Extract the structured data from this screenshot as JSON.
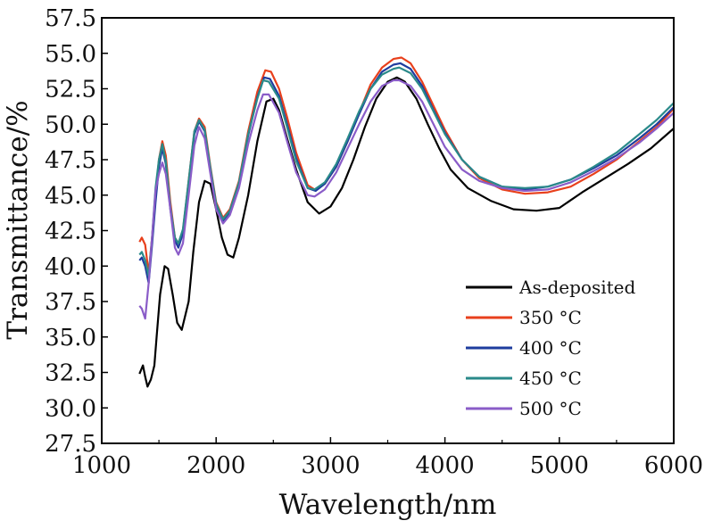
{
  "chart_data": {
    "type": "line",
    "xlabel": "Wavelength/nm",
    "ylabel": "Transmittance/%",
    "xlim": [
      1000,
      6000
    ],
    "ylim": [
      27.5,
      57.5
    ],
    "x_ticks": [
      1000,
      2000,
      3000,
      4000,
      5000,
      6000
    ],
    "x_tick_labels": [
      "1000",
      "2000",
      "3000",
      "4000",
      "5000",
      "6000"
    ],
    "y_ticks": [
      27.5,
      30.0,
      32.5,
      35.0,
      37.5,
      40.0,
      42.5,
      45.0,
      47.5,
      50.0,
      52.5,
      55.0,
      57.5
    ],
    "y_tick_labels": [
      "27.5",
      "30.0",
      "32.5",
      "35.0",
      "37.5",
      "40.0",
      "42.5",
      "45.0",
      "47.5",
      "50.0",
      "52.5",
      "55.0",
      "57.5"
    ],
    "grid": false,
    "legend_position": "bottom-right",
    "series": [
      {
        "name": "As-deposited",
        "color": "#000000",
        "points": [
          [
            1330,
            32.4
          ],
          [
            1360,
            33.0
          ],
          [
            1380,
            32.2
          ],
          [
            1400,
            31.5
          ],
          [
            1430,
            32.0
          ],
          [
            1460,
            33.0
          ],
          [
            1480,
            35.0
          ],
          [
            1510,
            38.0
          ],
          [
            1550,
            40.0
          ],
          [
            1580,
            39.8
          ],
          [
            1620,
            38.0
          ],
          [
            1660,
            36.0
          ],
          [
            1700,
            35.5
          ],
          [
            1760,
            37.5
          ],
          [
            1800,
            41.0
          ],
          [
            1850,
            44.5
          ],
          [
            1900,
            46.0
          ],
          [
            1950,
            45.8
          ],
          [
            2000,
            44.0
          ],
          [
            2050,
            42.0
          ],
          [
            2100,
            40.8
          ],
          [
            2150,
            40.6
          ],
          [
            2200,
            42.0
          ],
          [
            2280,
            45.0
          ],
          [
            2360,
            48.8
          ],
          [
            2440,
            51.6
          ],
          [
            2500,
            51.8
          ],
          [
            2550,
            51.0
          ],
          [
            2620,
            49.0
          ],
          [
            2700,
            46.8
          ],
          [
            2800,
            44.5
          ],
          [
            2900,
            43.7
          ],
          [
            3000,
            44.2
          ],
          [
            3100,
            45.5
          ],
          [
            3200,
            47.5
          ],
          [
            3300,
            49.8
          ],
          [
            3400,
            51.8
          ],
          [
            3500,
            53.0
          ],
          [
            3580,
            53.3
          ],
          [
            3650,
            53.0
          ],
          [
            3750,
            51.8
          ],
          [
            3850,
            50.0
          ],
          [
            3950,
            48.3
          ],
          [
            4050,
            46.8
          ],
          [
            4200,
            45.5
          ],
          [
            4400,
            44.6
          ],
          [
            4600,
            44.0
          ],
          [
            4800,
            43.9
          ],
          [
            5000,
            44.1
          ],
          [
            5200,
            45.2
          ],
          [
            5400,
            46.2
          ],
          [
            5600,
            47.2
          ],
          [
            5800,
            48.3
          ],
          [
            6000,
            49.7
          ]
        ]
      },
      {
        "name": "350 °C",
        "color": "#e8401c",
        "points": [
          [
            1330,
            41.7
          ],
          [
            1350,
            42.0
          ],
          [
            1380,
            41.5
          ],
          [
            1410,
            39.5
          ],
          [
            1440,
            42.0
          ],
          [
            1470,
            45.0
          ],
          [
            1500,
            47.5
          ],
          [
            1530,
            48.8
          ],
          [
            1560,
            47.8
          ],
          [
            1600,
            44.5
          ],
          [
            1640,
            42.0
          ],
          [
            1670,
            41.6
          ],
          [
            1710,
            42.5
          ],
          [
            1760,
            46.0
          ],
          [
            1810,
            49.5
          ],
          [
            1850,
            50.4
          ],
          [
            1900,
            49.8
          ],
          [
            1950,
            47.0
          ],
          [
            2000,
            44.5
          ],
          [
            2060,
            43.4
          ],
          [
            2120,
            44.0
          ],
          [
            2200,
            46.0
          ],
          [
            2280,
            49.5
          ],
          [
            2360,
            52.3
          ],
          [
            2430,
            53.8
          ],
          [
            2480,
            53.7
          ],
          [
            2550,
            52.5
          ],
          [
            2620,
            50.5
          ],
          [
            2700,
            48.0
          ],
          [
            2800,
            45.7
          ],
          [
            2860,
            45.4
          ],
          [
            2950,
            45.8
          ],
          [
            3050,
            47.0
          ],
          [
            3150,
            48.8
          ],
          [
            3250,
            50.8
          ],
          [
            3350,
            52.8
          ],
          [
            3450,
            54.0
          ],
          [
            3550,
            54.6
          ],
          [
            3620,
            54.7
          ],
          [
            3700,
            54.3
          ],
          [
            3800,
            53.0
          ],
          [
            3900,
            51.3
          ],
          [
            4000,
            49.6
          ],
          [
            4150,
            47.5
          ],
          [
            4300,
            46.2
          ],
          [
            4500,
            45.4
          ],
          [
            4700,
            45.1
          ],
          [
            4900,
            45.2
          ],
          [
            5100,
            45.6
          ],
          [
            5300,
            46.5
          ],
          [
            5500,
            47.5
          ],
          [
            5700,
            48.8
          ],
          [
            5850,
            49.8
          ],
          [
            6000,
            51.1
          ]
        ]
      },
      {
        "name": "400 °C",
        "color": "#1f3c9e",
        "points": [
          [
            1330,
            40.4
          ],
          [
            1350,
            40.6
          ],
          [
            1380,
            40.0
          ],
          [
            1410,
            38.8
          ],
          [
            1440,
            41.5
          ],
          [
            1470,
            44.5
          ],
          [
            1500,
            47.0
          ],
          [
            1530,
            48.3
          ],
          [
            1560,
            47.2
          ],
          [
            1600,
            44.0
          ],
          [
            1640,
            41.8
          ],
          [
            1670,
            41.3
          ],
          [
            1710,
            42.3
          ],
          [
            1760,
            45.8
          ],
          [
            1810,
            49.3
          ],
          [
            1850,
            50.2
          ],
          [
            1900,
            49.5
          ],
          [
            1950,
            46.8
          ],
          [
            2000,
            44.3
          ],
          [
            2060,
            43.2
          ],
          [
            2120,
            43.8
          ],
          [
            2200,
            45.8
          ],
          [
            2280,
            49.2
          ],
          [
            2360,
            51.9
          ],
          [
            2420,
            53.3
          ],
          [
            2470,
            53.2
          ],
          [
            2550,
            52.0
          ],
          [
            2620,
            50.0
          ],
          [
            2700,
            47.6
          ],
          [
            2800,
            45.5
          ],
          [
            2870,
            45.3
          ],
          [
            2950,
            45.8
          ],
          [
            3050,
            47.0
          ],
          [
            3150,
            48.8
          ],
          [
            3250,
            50.7
          ],
          [
            3350,
            52.5
          ],
          [
            3450,
            53.7
          ],
          [
            3550,
            54.2
          ],
          [
            3610,
            54.3
          ],
          [
            3700,
            53.9
          ],
          [
            3800,
            52.7
          ],
          [
            3900,
            51.0
          ],
          [
            4000,
            49.4
          ],
          [
            4150,
            47.5
          ],
          [
            4300,
            46.3
          ],
          [
            4500,
            45.6
          ],
          [
            4700,
            45.4
          ],
          [
            4900,
            45.6
          ],
          [
            5100,
            46.1
          ],
          [
            5300,
            46.9
          ],
          [
            5500,
            47.8
          ],
          [
            5700,
            49.0
          ],
          [
            5850,
            50.0
          ],
          [
            6000,
            51.2
          ]
        ]
      },
      {
        "name": "450 °C",
        "color": "#2a8a8a",
        "points": [
          [
            1330,
            40.8
          ],
          [
            1350,
            41.0
          ],
          [
            1380,
            40.4
          ],
          [
            1410,
            39.3
          ],
          [
            1440,
            42.0
          ],
          [
            1470,
            45.5
          ],
          [
            1500,
            47.5
          ],
          [
            1530,
            48.6
          ],
          [
            1560,
            47.4
          ],
          [
            1600,
            44.2
          ],
          [
            1640,
            42.0
          ],
          [
            1670,
            41.6
          ],
          [
            1710,
            42.6
          ],
          [
            1760,
            46.0
          ],
          [
            1810,
            49.5
          ],
          [
            1850,
            50.3
          ],
          [
            1900,
            49.6
          ],
          [
            1950,
            46.9
          ],
          [
            2000,
            44.4
          ],
          [
            2060,
            43.3
          ],
          [
            2120,
            43.9
          ],
          [
            2200,
            45.9
          ],
          [
            2280,
            49.3
          ],
          [
            2360,
            51.8
          ],
          [
            2410,
            53.1
          ],
          [
            2460,
            53.0
          ],
          [
            2550,
            51.8
          ],
          [
            2620,
            49.8
          ],
          [
            2700,
            47.4
          ],
          [
            2800,
            45.5
          ],
          [
            2860,
            45.4
          ],
          [
            2950,
            45.9
          ],
          [
            3050,
            47.2
          ],
          [
            3150,
            49.0
          ],
          [
            3250,
            50.9
          ],
          [
            3350,
            52.5
          ],
          [
            3450,
            53.5
          ],
          [
            3550,
            53.9
          ],
          [
            3600,
            54.0
          ],
          [
            3700,
            53.6
          ],
          [
            3800,
            52.5
          ],
          [
            3900,
            50.9
          ],
          [
            4000,
            49.3
          ],
          [
            4150,
            47.5
          ],
          [
            4300,
            46.3
          ],
          [
            4500,
            45.6
          ],
          [
            4700,
            45.5
          ],
          [
            4900,
            45.6
          ],
          [
            5100,
            46.1
          ],
          [
            5300,
            47.0
          ],
          [
            5500,
            48.0
          ],
          [
            5700,
            49.3
          ],
          [
            5850,
            50.3
          ],
          [
            6000,
            51.5
          ]
        ]
      },
      {
        "name": "500 °C",
        "color": "#8a5cc8",
        "points": [
          [
            1330,
            37.2
          ],
          [
            1350,
            37.0
          ],
          [
            1380,
            36.3
          ],
          [
            1410,
            38.8
          ],
          [
            1440,
            42.0
          ],
          [
            1470,
            45.3
          ],
          [
            1500,
            46.5
          ],
          [
            1530,
            47.3
          ],
          [
            1560,
            46.5
          ],
          [
            1600,
            44.0
          ],
          [
            1640,
            41.3
          ],
          [
            1670,
            40.8
          ],
          [
            1710,
            41.6
          ],
          [
            1760,
            45.0
          ],
          [
            1810,
            48.5
          ],
          [
            1850,
            49.8
          ],
          [
            1900,
            49.0
          ],
          [
            1950,
            46.5
          ],
          [
            2000,
            44.0
          ],
          [
            2060,
            43.0
          ],
          [
            2120,
            43.6
          ],
          [
            2200,
            45.5
          ],
          [
            2280,
            48.6
          ],
          [
            2360,
            51.0
          ],
          [
            2410,
            52.1
          ],
          [
            2460,
            52.1
          ],
          [
            2550,
            50.8
          ],
          [
            2620,
            48.8
          ],
          [
            2700,
            46.6
          ],
          [
            2800,
            45.0
          ],
          [
            2860,
            44.9
          ],
          [
            2950,
            45.4
          ],
          [
            3050,
            46.6
          ],
          [
            3150,
            48.3
          ],
          [
            3250,
            50.0
          ],
          [
            3350,
            51.6
          ],
          [
            3450,
            52.7
          ],
          [
            3550,
            53.1
          ],
          [
            3600,
            53.1
          ],
          [
            3700,
            52.7
          ],
          [
            3800,
            51.6
          ],
          [
            3900,
            50.0
          ],
          [
            4000,
            48.4
          ],
          [
            4150,
            46.8
          ],
          [
            4300,
            46.0
          ],
          [
            4500,
            45.5
          ],
          [
            4700,
            45.3
          ],
          [
            4900,
            45.4
          ],
          [
            5100,
            45.9
          ],
          [
            5300,
            46.7
          ],
          [
            5500,
            47.6
          ],
          [
            5700,
            48.7
          ],
          [
            5850,
            49.7
          ],
          [
            6000,
            50.8
          ]
        ]
      }
    ]
  }
}
